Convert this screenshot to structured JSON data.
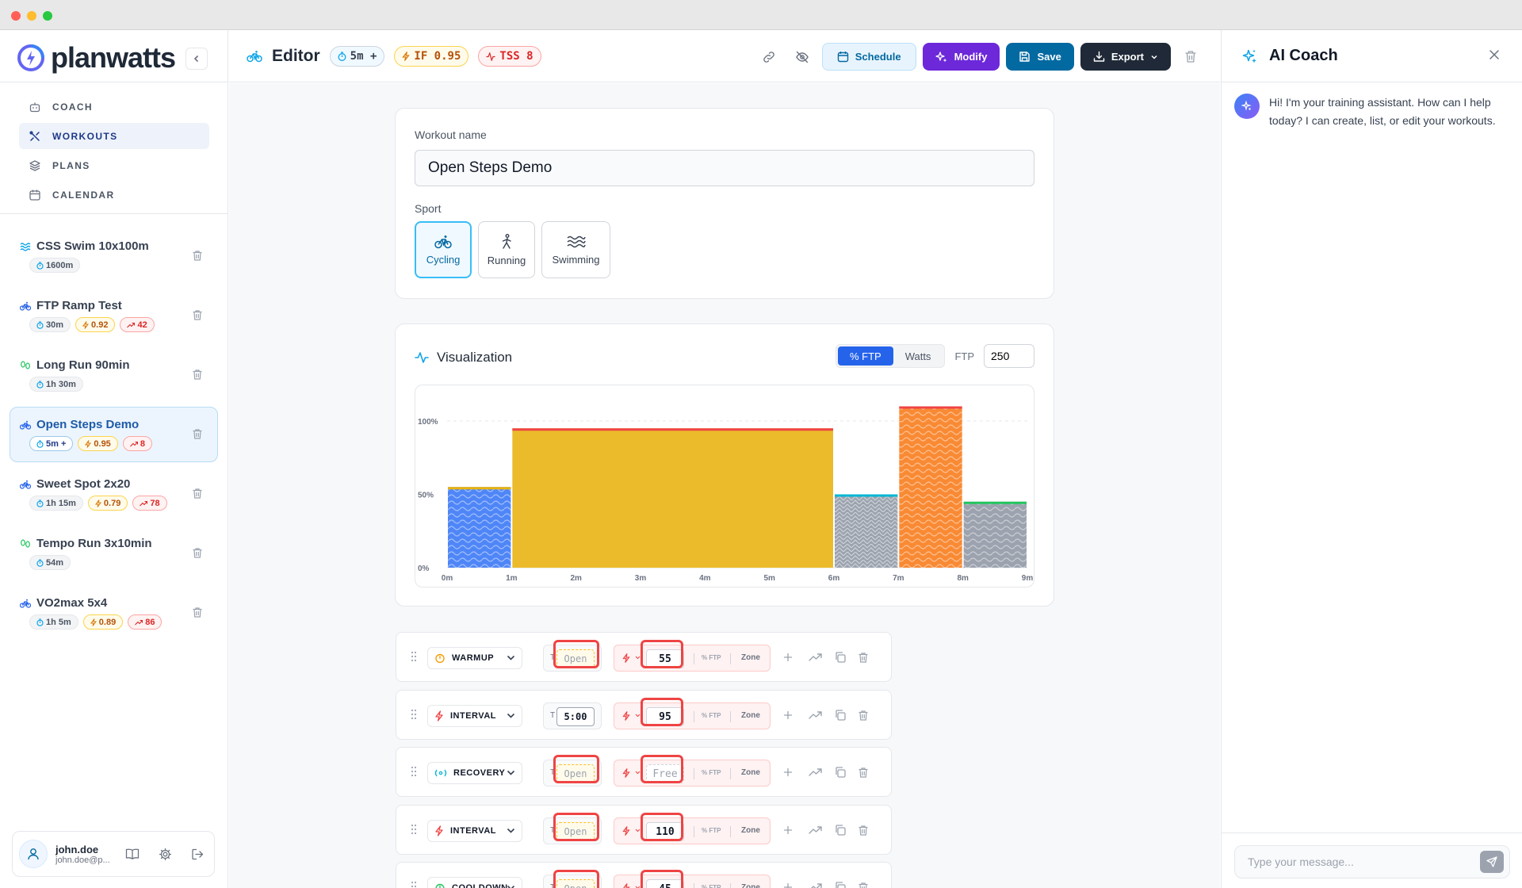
{
  "sidebar": {
    "brand": "planwatts",
    "nav": [
      {
        "label": "COACH",
        "icon": "bot-icon",
        "active": false
      },
      {
        "label": "WORKOUTS",
        "icon": "workouts-icon",
        "active": true
      },
      {
        "label": "PLANS",
        "icon": "layers-icon",
        "active": false
      },
      {
        "label": "CALENDAR",
        "icon": "calendar-icon",
        "active": false
      }
    ],
    "workouts": [
      {
        "name": "CSS Swim 10x100m",
        "sport": "swimming",
        "duration": "1600m",
        "if": "",
        "tss": ""
      },
      {
        "name": "FTP Ramp Test",
        "sport": "cycling",
        "duration": "30m",
        "if": "0.92",
        "tss": "42"
      },
      {
        "name": "Long Run 90min",
        "sport": "running",
        "duration": "1h 30m",
        "if": "",
        "tss": ""
      },
      {
        "name": "Open Steps Demo",
        "sport": "cycling",
        "duration": "5m +",
        "if": "0.95",
        "tss": "8"
      },
      {
        "name": "Sweet Spot 2x20",
        "sport": "cycling",
        "duration": "1h 15m",
        "if": "0.79",
        "tss": "78"
      },
      {
        "name": "Tempo Run 3x10min",
        "sport": "running",
        "duration": "54m",
        "if": "",
        "tss": ""
      },
      {
        "name": "VO2max 5x4",
        "sport": "cycling",
        "duration": "1h 5m",
        "if": "0.89",
        "tss": "86"
      }
    ],
    "user": {
      "name": "john.doe",
      "email": "john.doe@p..."
    }
  },
  "header": {
    "title": "Editor",
    "duration": "5m +",
    "if_label": "IF 0.95",
    "tss_label": "TSS 8",
    "schedule": "Schedule",
    "modify": "Modify",
    "save": "Save",
    "export": "Export"
  },
  "form": {
    "name_label": "Workout name",
    "name_value": "Open Steps Demo",
    "sport_label": "Sport",
    "sports": [
      {
        "label": "Cycling",
        "active": true
      },
      {
        "label": "Running",
        "active": false
      },
      {
        "label": "Swimming",
        "active": false
      }
    ]
  },
  "viz": {
    "title": "Visualization",
    "mode_ftp": "% FTP",
    "mode_watts": "Watts",
    "ftp_label": "FTP",
    "ftp_value": "250"
  },
  "chart_data": {
    "type": "bar",
    "x_ticks": [
      "0m",
      "1m",
      "2m",
      "3m",
      "4m",
      "5m",
      "6m",
      "7m",
      "8m",
      "9m"
    ],
    "y_ticks": [
      "0%",
      "50%",
      "100%"
    ],
    "xlim": [
      0,
      9
    ],
    "ylim": [
      0,
      100
    ],
    "blocks": [
      {
        "start": 0,
        "end": 1,
        "value": 55,
        "color": "#4f86f7",
        "edge": "#eab308",
        "pattern": "waves"
      },
      {
        "start": 1,
        "end": 6,
        "value": 95,
        "color": "#ebbb2c",
        "edge": "#ef4444",
        "pattern": "solid"
      },
      {
        "start": 6,
        "end": 7,
        "value": 50,
        "color": "#9ca3af",
        "edge": "#06b6d4",
        "pattern": "chevron"
      },
      {
        "start": 7,
        "end": 8,
        "value": 110,
        "color": "#f98a34",
        "edge": "#ef4444",
        "pattern": "waves"
      },
      {
        "start": 8,
        "end": 9,
        "value": 45,
        "color": "#9ca3af",
        "edge": "#22c55e",
        "pattern": "waves"
      }
    ]
  },
  "steps": [
    {
      "type": "WARMUP",
      "icon": "flame-icon",
      "duration": "Open",
      "open": true,
      "power": "55"
    },
    {
      "type": "INTERVAL",
      "icon": "bolt-icon",
      "duration": "5:00",
      "open": false,
      "power": "95"
    },
    {
      "type": "RECOVERY",
      "icon": "recovery-icon",
      "duration": "Open",
      "open": true,
      "power": "Free"
    },
    {
      "type": "INTERVAL",
      "icon": "bolt-icon",
      "duration": "Open",
      "open": true,
      "power": "110"
    },
    {
      "type": "COOLDOWN",
      "icon": "cooldown-icon",
      "duration": "Open",
      "open": true,
      "power": "45"
    }
  ],
  "step_labels": {
    "t": "T",
    "unit": "% FTP",
    "zone": "Zone"
  },
  "coach": {
    "title": "AI Coach",
    "message": "Hi! I'm your training assistant. How can I help today? I can create, list, or edit your workouts.",
    "placeholder": "Type your message..."
  },
  "colors": {
    "accent": "#0369a1",
    "modify": "#6d28d9",
    "export": "#1f2937",
    "highlight": "#ef4444"
  }
}
